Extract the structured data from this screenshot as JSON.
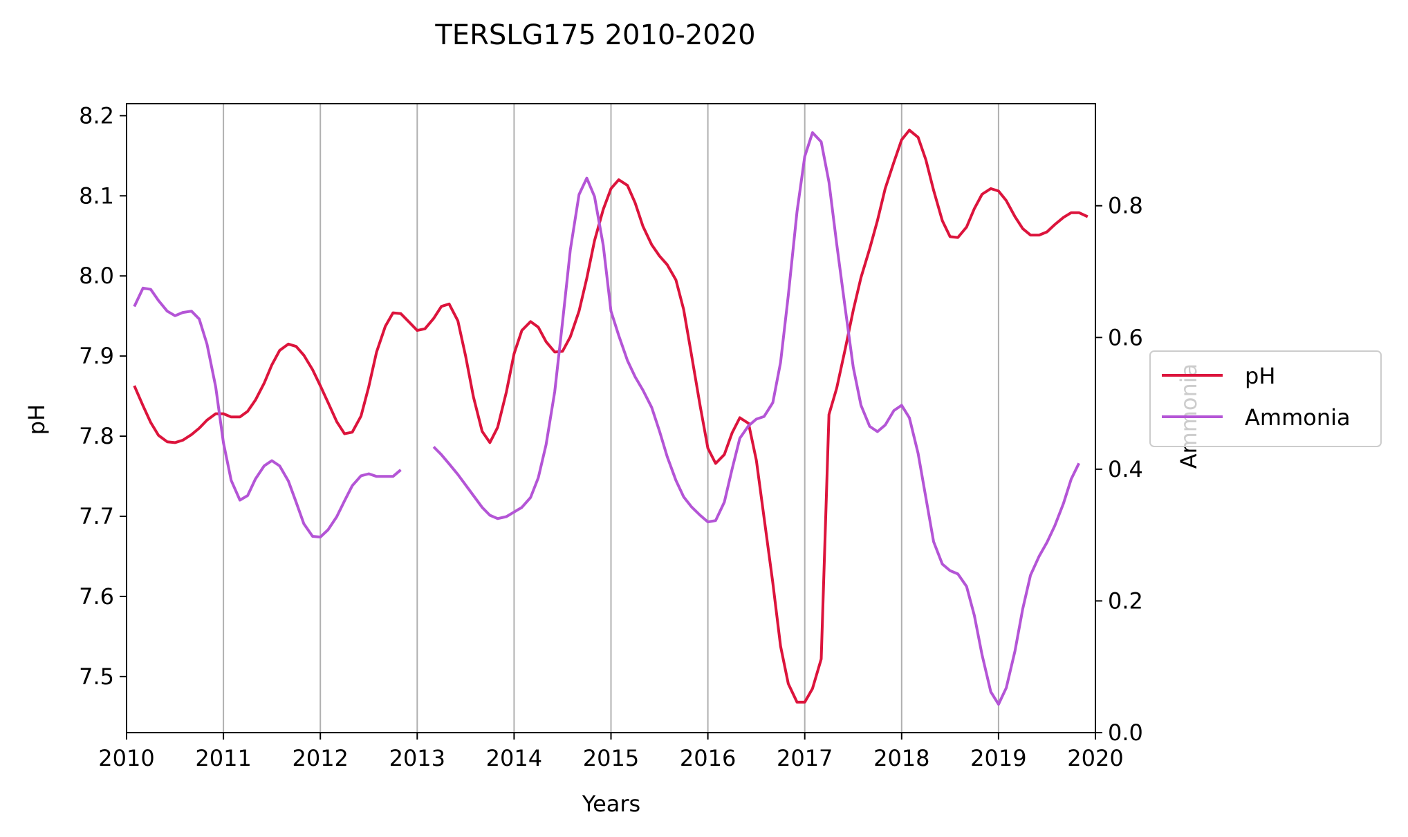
{
  "chart_data": {
    "type": "line",
    "title": "TERSLG175 2010-2020",
    "xlabel": "Years",
    "ylabel": "pH",
    "y2label": "Ammonia",
    "xlim": [
      2010,
      2020
    ],
    "ylim": [
      7.43,
      8.215
    ],
    "y2lim": [
      0.0,
      0.955
    ],
    "x_ticks": [
      "2010",
      "2011",
      "2012",
      "2013",
      "2014",
      "2015",
      "2016",
      "2017",
      "2018",
      "2019",
      "2020"
    ],
    "y_ticks": [
      "7.5",
      "7.6",
      "7.7",
      "7.8",
      "7.9",
      "8.0",
      "8.1",
      "8.2"
    ],
    "y2_ticks": [
      "0.0",
      "0.2",
      "0.4",
      "0.6",
      "0.8"
    ],
    "grid": "x-major vertical lines",
    "legend_position": "right",
    "series": [
      {
        "name": "pH",
        "axis": "left",
        "color": "#dc143c",
        "points": [
          [
            2010.08,
            7.863
          ],
          [
            2010.17,
            7.838
          ],
          [
            2010.25,
            7.817
          ],
          [
            2010.33,
            7.801
          ],
          [
            2010.42,
            7.793
          ],
          [
            2010.5,
            7.792
          ],
          [
            2010.58,
            7.795
          ],
          [
            2010.67,
            7.802
          ],
          [
            2010.75,
            7.81
          ],
          [
            2010.83,
            7.82
          ],
          [
            2010.92,
            7.828
          ],
          [
            2011.0,
            7.828
          ],
          [
            2011.08,
            7.824
          ],
          [
            2011.17,
            7.824
          ],
          [
            2011.25,
            7.831
          ],
          [
            2011.33,
            7.845
          ],
          [
            2011.42,
            7.866
          ],
          [
            2011.5,
            7.889
          ],
          [
            2011.58,
            7.907
          ],
          [
            2011.67,
            7.915
          ],
          [
            2011.75,
            7.912
          ],
          [
            2011.83,
            7.901
          ],
          [
            2011.92,
            7.883
          ],
          [
            2012.0,
            7.863
          ],
          [
            2012.08,
            7.842
          ],
          [
            2012.17,
            7.818
          ],
          [
            2012.25,
            7.803
          ],
          [
            2012.33,
            7.805
          ],
          [
            2012.42,
            7.825
          ],
          [
            2012.5,
            7.862
          ],
          [
            2012.58,
            7.905
          ],
          [
            2012.67,
            7.937
          ],
          [
            2012.75,
            7.954
          ],
          [
            2012.83,
            7.953
          ],
          [
            2012.92,
            7.942
          ],
          [
            2013.0,
            7.932
          ],
          [
            2013.08,
            7.934
          ],
          [
            2013.17,
            7.947
          ],
          [
            2013.25,
            7.962
          ],
          [
            2013.33,
            7.965
          ],
          [
            2013.42,
            7.944
          ],
          [
            2013.5,
            7.9
          ],
          [
            2013.58,
            7.849
          ],
          [
            2013.67,
            7.806
          ],
          [
            2013.75,
            7.792
          ],
          [
            2013.83,
            7.811
          ],
          [
            2013.92,
            7.855
          ],
          [
            2014.0,
            7.903
          ],
          [
            2014.08,
            7.932
          ],
          [
            2014.17,
            7.943
          ],
          [
            2014.25,
            7.936
          ],
          [
            2014.33,
            7.918
          ],
          [
            2014.42,
            7.905
          ],
          [
            2014.5,
            7.906
          ],
          [
            2014.58,
            7.924
          ],
          [
            2014.67,
            7.956
          ],
          [
            2014.75,
            7.997
          ],
          [
            2014.83,
            8.044
          ],
          [
            2014.92,
            8.083
          ],
          [
            2015.0,
            8.109
          ],
          [
            2015.08,
            8.12
          ],
          [
            2015.17,
            8.113
          ],
          [
            2015.25,
            8.091
          ],
          [
            2015.33,
            8.062
          ],
          [
            2015.42,
            8.039
          ],
          [
            2015.5,
            8.025
          ],
          [
            2015.58,
            8.014
          ],
          [
            2015.67,
            7.995
          ],
          [
            2015.75,
            7.958
          ],
          [
            2015.83,
            7.902
          ],
          [
            2015.92,
            7.838
          ],
          [
            2016.0,
            7.785
          ],
          [
            2016.08,
            7.766
          ],
          [
            2016.17,
            7.777
          ],
          [
            2016.25,
            7.804
          ],
          [
            2016.33,
            7.823
          ],
          [
            2016.42,
            7.816
          ],
          [
            2016.5,
            7.77
          ],
          [
            2016.58,
            7.698
          ],
          [
            2016.67,
            7.617
          ],
          [
            2016.75,
            7.538
          ],
          [
            2016.83,
            7.491
          ],
          [
            2016.92,
            7.468
          ],
          [
            2017.0,
            7.468
          ],
          [
            2017.08,
            7.485
          ],
          [
            2017.17,
            7.522
          ],
          [
            2017.25,
            7.827
          ],
          [
            2017.33,
            7.86
          ],
          [
            2017.42,
            7.91
          ],
          [
            2017.5,
            7.957
          ],
          [
            2017.58,
            7.998
          ],
          [
            2017.67,
            8.034
          ],
          [
            2017.75,
            8.069
          ],
          [
            2017.83,
            8.109
          ],
          [
            2017.92,
            8.142
          ],
          [
            2018.0,
            8.17
          ],
          [
            2018.08,
            8.182
          ],
          [
            2018.17,
            8.173
          ],
          [
            2018.25,
            8.145
          ],
          [
            2018.33,
            8.107
          ],
          [
            2018.42,
            8.069
          ],
          [
            2018.5,
            8.049
          ],
          [
            2018.58,
            8.048
          ],
          [
            2018.67,
            8.061
          ],
          [
            2018.75,
            8.084
          ],
          [
            2018.83,
            8.102
          ],
          [
            2018.92,
            8.109
          ],
          [
            2019.0,
            8.106
          ],
          [
            2019.08,
            8.094
          ],
          [
            2019.17,
            8.074
          ],
          [
            2019.25,
            8.059
          ],
          [
            2019.33,
            8.051
          ],
          [
            2019.42,
            8.051
          ],
          [
            2019.5,
            8.055
          ],
          [
            2019.58,
            8.064
          ],
          [
            2019.67,
            8.073
          ],
          [
            2019.75,
            8.079
          ],
          [
            2019.83,
            8.079
          ],
          [
            2019.92,
            8.074
          ]
        ]
      },
      {
        "name": "Ammonia",
        "axis": "right",
        "color": "#b455d6",
        "points": [
          [
            2010.08,
            0.647
          ],
          [
            2010.17,
            0.675
          ],
          [
            2010.25,
            0.673
          ],
          [
            2010.33,
            0.656
          ],
          [
            2010.42,
            0.64
          ],
          [
            2010.5,
            0.633
          ],
          [
            2010.58,
            0.638
          ],
          [
            2010.67,
            0.64
          ],
          [
            2010.75,
            0.628
          ],
          [
            2010.83,
            0.59
          ],
          [
            2010.92,
            0.525
          ],
          [
            2011.0,
            0.44
          ],
          [
            2011.08,
            0.383
          ],
          [
            2011.17,
            0.353
          ],
          [
            2011.25,
            0.36
          ],
          [
            2011.33,
            0.385
          ],
          [
            2011.42,
            0.405
          ],
          [
            2011.5,
            0.413
          ],
          [
            2011.58,
            0.405
          ],
          [
            2011.67,
            0.382
          ],
          [
            2011.75,
            0.35
          ],
          [
            2011.83,
            0.317
          ],
          [
            2011.92,
            0.298
          ],
          [
            2012.0,
            0.297
          ],
          [
            2012.08,
            0.308
          ],
          [
            2012.17,
            0.328
          ],
          [
            2012.25,
            0.352
          ],
          [
            2012.33,
            0.375
          ],
          [
            2012.42,
            0.39
          ],
          [
            2012.5,
            0.393
          ],
          [
            2012.58,
            0.389
          ],
          [
            2012.67,
            0.389
          ],
          [
            2012.75,
            0.389
          ],
          [
            2012.83,
            0.399
          ],
          null,
          [
            2013.17,
            0.434
          ],
          [
            2013.25,
            0.422
          ],
          [
            2013.33,
            0.408
          ],
          [
            2013.42,
            0.392
          ],
          [
            2013.5,
            0.376
          ],
          [
            2013.58,
            0.36
          ],
          [
            2013.67,
            0.342
          ],
          [
            2013.75,
            0.33
          ],
          [
            2013.83,
            0.325
          ],
          [
            2013.92,
            0.328
          ],
          [
            2014.0,
            0.335
          ],
          [
            2014.08,
            0.342
          ],
          [
            2014.17,
            0.357
          ],
          [
            2014.25,
            0.387
          ],
          [
            2014.33,
            0.437
          ],
          [
            2014.42,
            0.518
          ],
          [
            2014.5,
            0.624
          ],
          [
            2014.58,
            0.733
          ],
          [
            2014.67,
            0.817
          ],
          [
            2014.75,
            0.842
          ],
          [
            2014.83,
            0.814
          ],
          [
            2014.92,
            0.74
          ],
          [
            2015.0,
            0.64
          ],
          [
            2015.08,
            0.603
          ],
          [
            2015.17,
            0.565
          ],
          [
            2015.25,
            0.54
          ],
          [
            2015.33,
            0.52
          ],
          [
            2015.42,
            0.494
          ],
          [
            2015.5,
            0.458
          ],
          [
            2015.58,
            0.419
          ],
          [
            2015.67,
            0.383
          ],
          [
            2015.75,
            0.358
          ],
          [
            2015.83,
            0.343
          ],
          [
            2015.92,
            0.33
          ],
          [
            2016.0,
            0.32
          ],
          [
            2016.08,
            0.322
          ],
          [
            2016.17,
            0.35
          ],
          [
            2016.25,
            0.4
          ],
          [
            2016.33,
            0.447
          ],
          [
            2016.42,
            0.466
          ],
          [
            2016.5,
            0.476
          ],
          [
            2016.58,
            0.48
          ],
          [
            2016.67,
            0.501
          ],
          [
            2016.75,
            0.562
          ],
          [
            2016.83,
            0.664
          ],
          [
            2016.92,
            0.791
          ],
          [
            2017.0,
            0.875
          ],
          [
            2017.08,
            0.911
          ],
          [
            2017.17,
            0.897
          ],
          [
            2017.25,
            0.836
          ],
          [
            2017.33,
            0.742
          ],
          [
            2017.42,
            0.642
          ],
          [
            2017.5,
            0.555
          ],
          [
            2017.58,
            0.497
          ],
          [
            2017.67,
            0.465
          ],
          [
            2017.75,
            0.457
          ],
          [
            2017.83,
            0.467
          ],
          [
            2017.92,
            0.489
          ],
          [
            2018.0,
            0.497
          ],
          [
            2018.08,
            0.478
          ],
          [
            2018.17,
            0.424
          ],
          [
            2018.25,
            0.357
          ],
          [
            2018.33,
            0.29
          ],
          [
            2018.42,
            0.256
          ],
          [
            2018.5,
            0.246
          ],
          [
            2018.58,
            0.241
          ],
          [
            2018.67,
            0.222
          ],
          [
            2018.75,
            0.178
          ],
          [
            2018.83,
            0.118
          ],
          [
            2018.92,
            0.062
          ],
          [
            2019.0,
            0.043
          ],
          [
            2019.08,
            0.068
          ],
          [
            2019.17,
            0.124
          ],
          [
            2019.25,
            0.188
          ],
          [
            2019.33,
            0.239
          ],
          [
            2019.42,
            0.268
          ],
          [
            2019.5,
            0.289
          ],
          [
            2019.58,
            0.314
          ],
          [
            2019.67,
            0.348
          ],
          [
            2019.75,
            0.385
          ],
          [
            2019.83,
            0.409
          ]
        ]
      }
    ]
  }
}
